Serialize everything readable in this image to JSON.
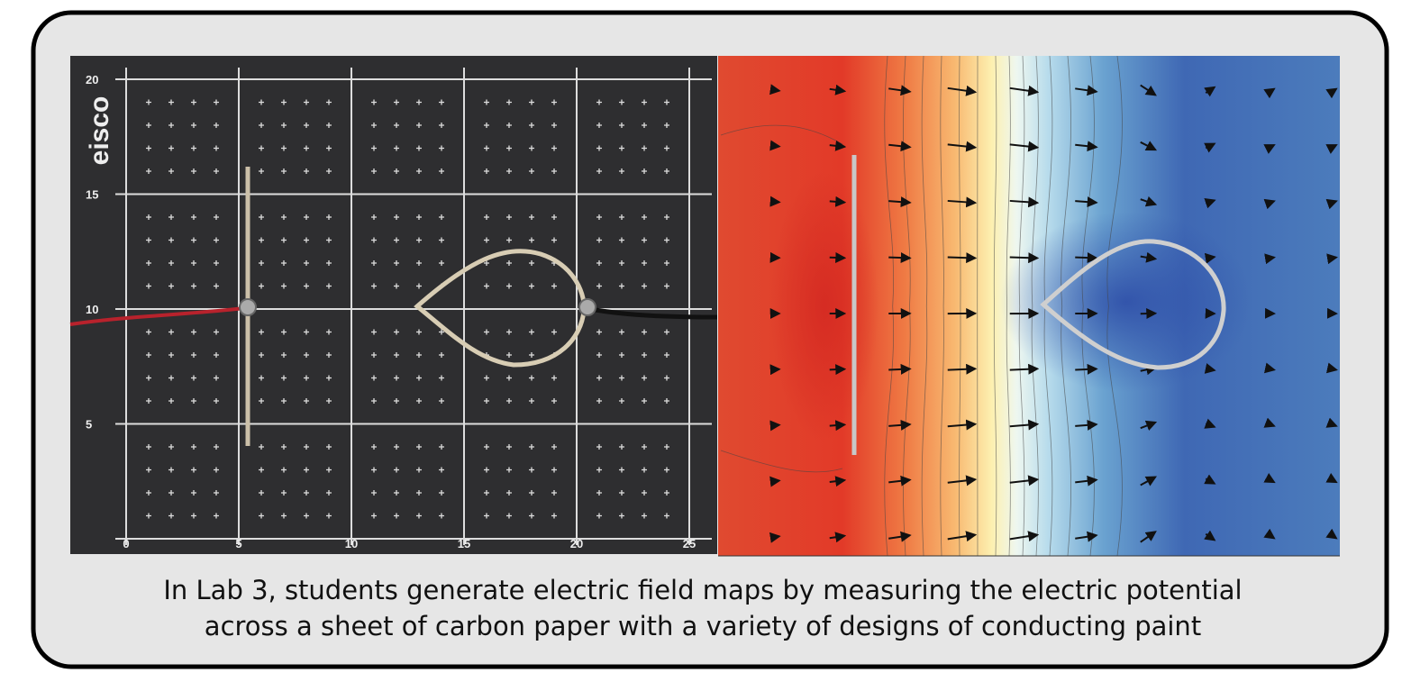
{
  "photo": {
    "brand": "eisco",
    "x_labels": [
      "0",
      "5",
      "10",
      "15",
      "20",
      "25"
    ],
    "y_labels": [
      "5",
      "10",
      "15",
      "20"
    ]
  },
  "caption": {
    "lines": [
      "In Lab 3, students generate electric field maps by measuring the electric potential",
      "across a sheet of carbon paper with a variety of designs of conducting paint"
    ]
  }
}
